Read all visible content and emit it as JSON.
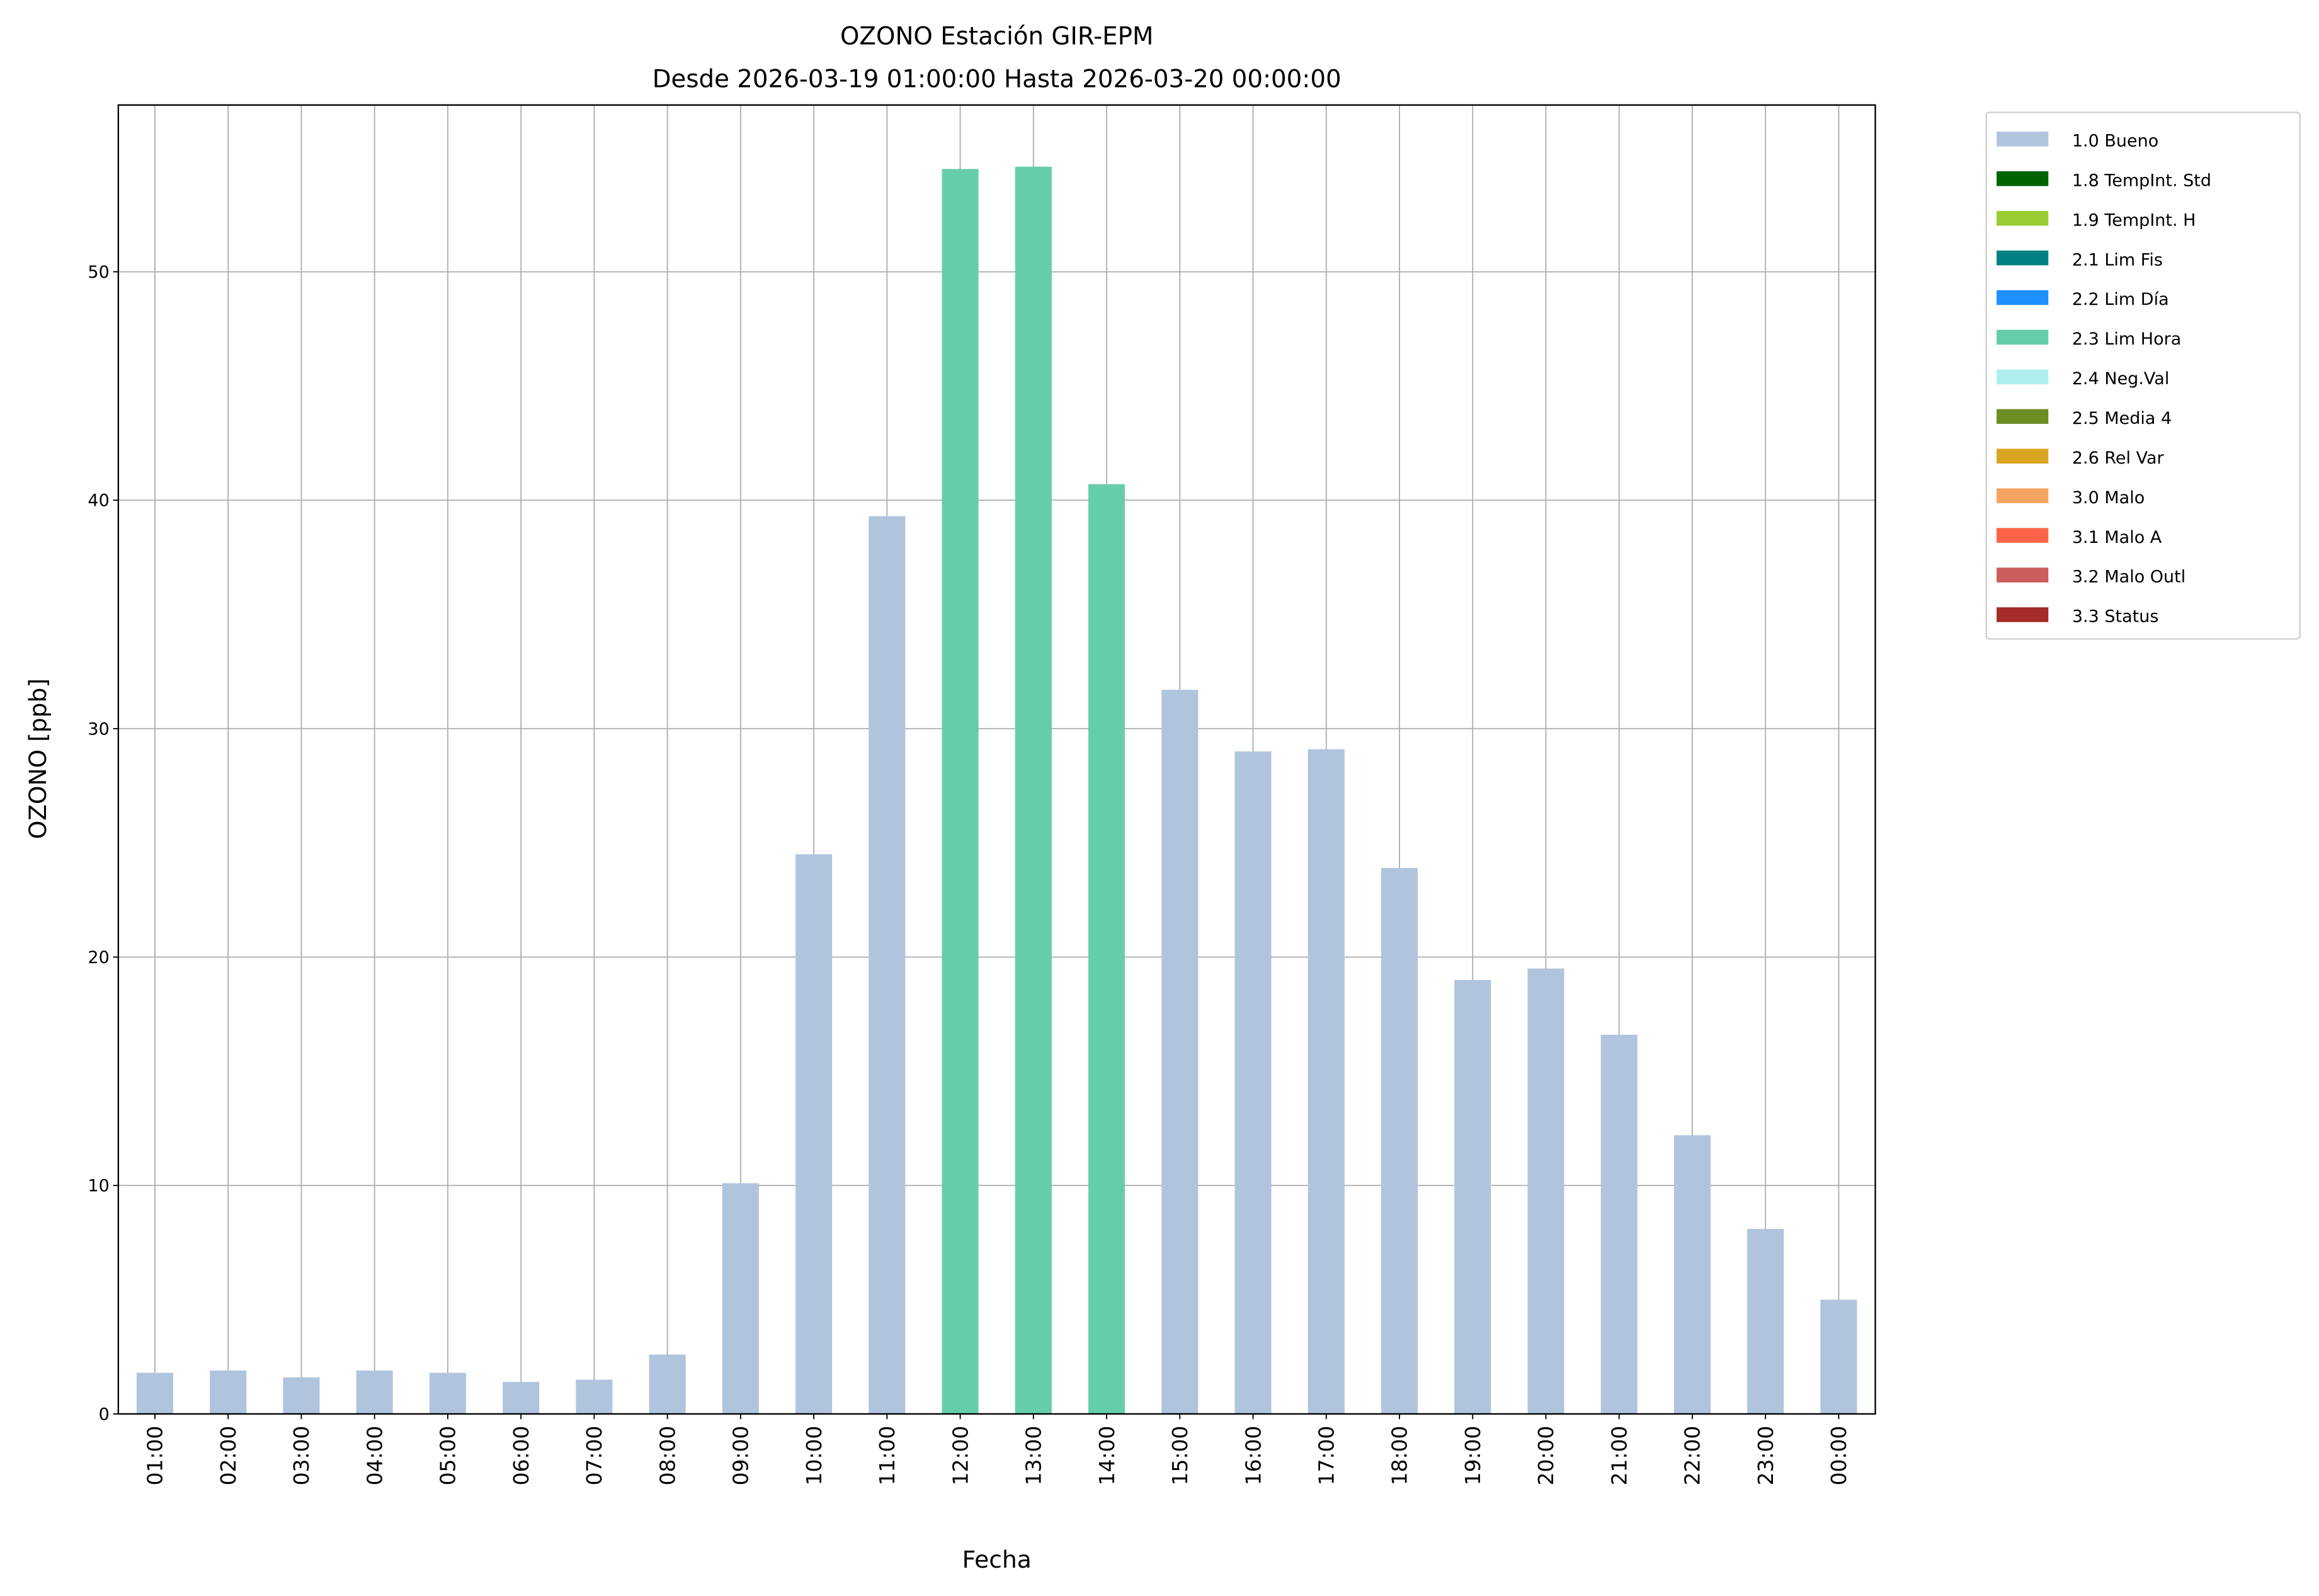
{
  "chart_data": {
    "type": "bar",
    "title": "OZONO Estación GIR-EPM",
    "subtitle": "Desde 2026-03-19 01:00:00 Hasta 2026-03-20 00:00:00",
    "xlabel": "Fecha",
    "ylabel": "OZONO [ppb]",
    "ylim": [
      0,
      57.3
    ],
    "yticks": [
      "0",
      "10",
      "20",
      "30",
      "40",
      "50"
    ],
    "grid": true,
    "legend_position": "outside-top-right",
    "categories": [
      "01:00",
      "02:00",
      "03:00",
      "04:00",
      "05:00",
      "06:00",
      "07:00",
      "08:00",
      "09:00",
      "10:00",
      "11:00",
      "12:00",
      "13:00",
      "14:00",
      "15:00",
      "16:00",
      "17:00",
      "18:00",
      "19:00",
      "20:00",
      "21:00",
      "22:00",
      "23:00",
      "00:00"
    ],
    "values": [
      1.8,
      1.9,
      1.6,
      1.9,
      1.8,
      1.4,
      1.5,
      2.6,
      10.1,
      24.5,
      39.3,
      54.5,
      54.6,
      40.7,
      31.7,
      29.0,
      29.1,
      23.9,
      19.0,
      19.5,
      16.6,
      12.2,
      8.1,
      5.0
    ],
    "flags": [
      "1.0 Bueno",
      "1.0 Bueno",
      "1.0 Bueno",
      "1.0 Bueno",
      "1.0 Bueno",
      "1.0 Bueno",
      "1.0 Bueno",
      "1.0 Bueno",
      "1.0 Bueno",
      "1.0 Bueno",
      "1.0 Bueno",
      "2.3 Lim Hora",
      "2.3 Lim Hora",
      "2.3 Lim Hora",
      "1.0 Bueno",
      "1.0 Bueno",
      "1.0 Bueno",
      "1.0 Bueno",
      "1.0 Bueno",
      "1.0 Bueno",
      "1.0 Bueno",
      "1.0 Bueno",
      "1.0 Bueno",
      "1.0 Bueno"
    ],
    "legend": [
      {
        "label": "1.0 Bueno",
        "color": "#b0c4de"
      },
      {
        "label": "1.8 TempInt. Std",
        "color": "#006400"
      },
      {
        "label": "1.9 TempInt. H",
        "color": "#9acd32"
      },
      {
        "label": "2.1 Lim Fis",
        "color": "#008080"
      },
      {
        "label": "2.2 Lim Día",
        "color": "#1e90ff"
      },
      {
        "label": "2.3 Lim Hora",
        "color": "#66cdaa"
      },
      {
        "label": "2.4 Neg.Val",
        "color": "#afeeee"
      },
      {
        "label": "2.5 Media 4",
        "color": "#6b8e23"
      },
      {
        "label": "2.6 Rel Var",
        "color": "#daa520"
      },
      {
        "label": "3.0 Malo",
        "color": "#f4a460"
      },
      {
        "label": "3.1 Malo A",
        "color": "#ff6347"
      },
      {
        "label": "3.2 Malo Outl",
        "color": "#cd5c5c"
      },
      {
        "label": "3.3 Status",
        "color": "#a52a2a"
      }
    ]
  }
}
